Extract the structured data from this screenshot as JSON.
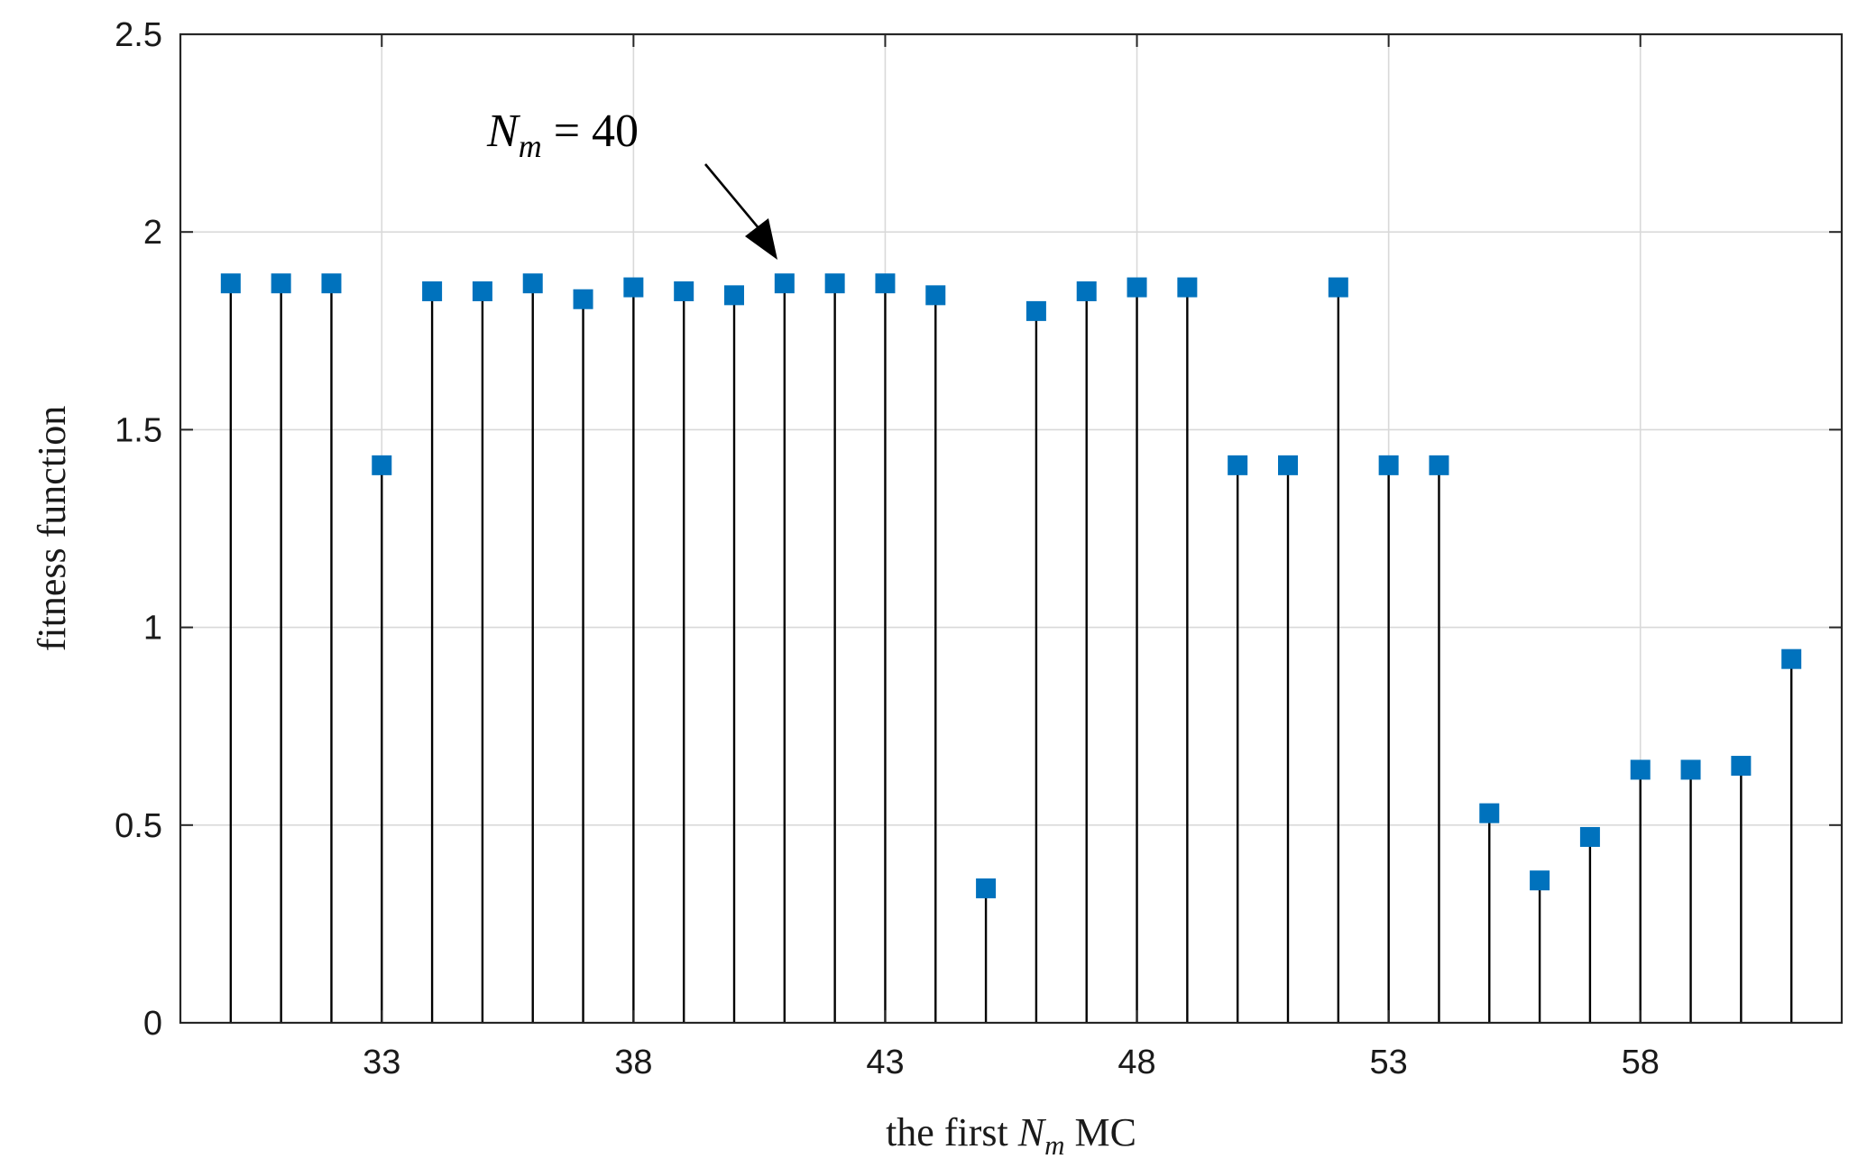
{
  "chart_data": {
    "type": "stem",
    "title": "",
    "xlabel": {
      "prefix": "the first ",
      "var": "N",
      "sub": "m",
      "suffix": " MC"
    },
    "ylabel": "fitness function",
    "xlim": [
      29,
      62
    ],
    "ylim": [
      0,
      2.5
    ],
    "xticks": [
      33,
      38,
      43,
      48,
      53,
      58
    ],
    "yticks": [
      0,
      0.5,
      1,
      1.5,
      2,
      2.5
    ],
    "yticklabels": [
      "0",
      "0.5",
      "1",
      "1.5",
      "2",
      "2.5"
    ],
    "grid": true,
    "marker": "square",
    "marker_color": "#0072BD",
    "stem_color": "#000000",
    "x": [
      30,
      31,
      32,
      33,
      34,
      35,
      36,
      37,
      38,
      39,
      40,
      41,
      42,
      43,
      44,
      45,
      46,
      47,
      48,
      49,
      50,
      51,
      52,
      53,
      54,
      55,
      56,
      57,
      58,
      59,
      60,
      61
    ],
    "values": [
      1.87,
      1.87,
      1.87,
      1.41,
      1.85,
      1.85,
      1.87,
      1.83,
      1.86,
      1.85,
      1.84,
      1.87,
      1.87,
      1.87,
      1.84,
      0.34,
      1.8,
      1.85,
      1.86,
      1.86,
      1.41,
      1.41,
      1.86,
      1.41,
      1.41,
      0.53,
      0.36,
      0.47,
      0.64,
      0.64,
      0.65,
      0.92
    ],
    "annotation": {
      "var": "N",
      "sub": "m",
      "rest": " = 40",
      "target_x": 40
    }
  }
}
